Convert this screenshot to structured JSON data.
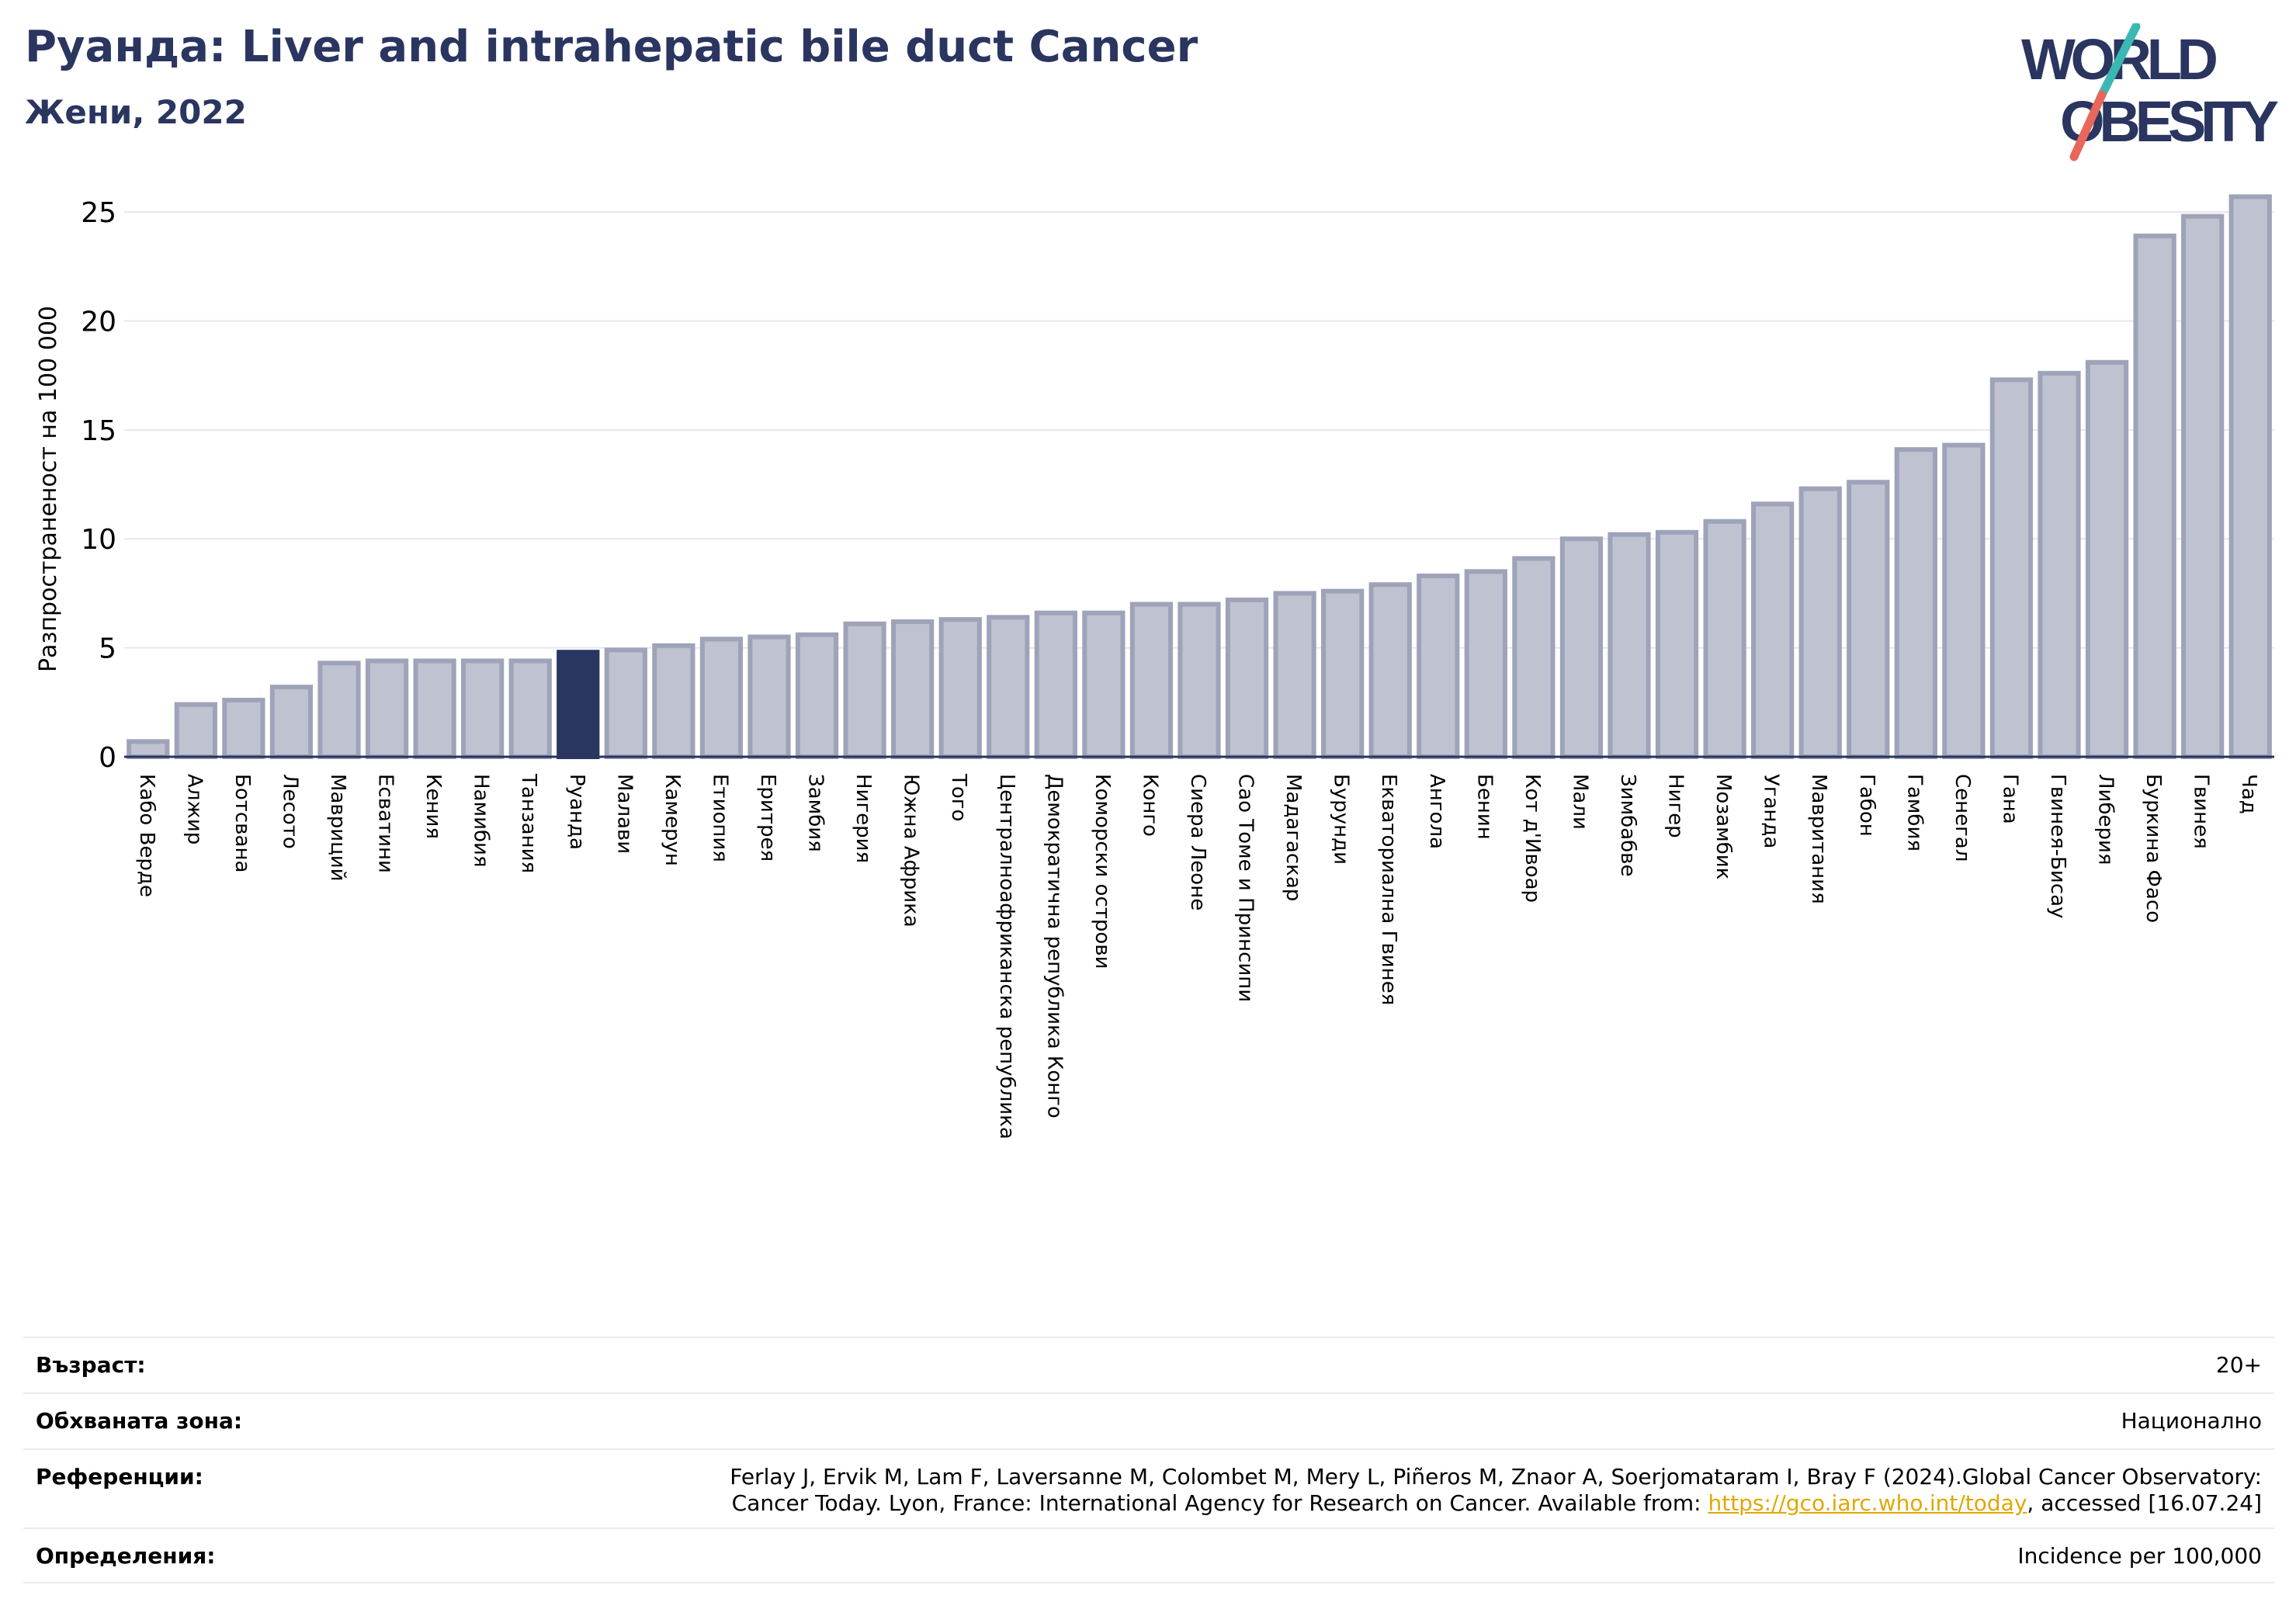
{
  "header": {
    "title": "Руанда: Liver and intrahepatic bile duct Cancer",
    "subtitle": "Жени, 2022"
  },
  "logo": {
    "line1": "WORLD",
    "line2": "OBESITY",
    "icon": "world-obesity-logo",
    "colors": {
      "text": "#2a3560",
      "slash_top": "#3bb8b3",
      "slash_bottom": "#e8675a"
    }
  },
  "chart_data": {
    "type": "bar",
    "ylabel": "Разпространеност  на 100 000",
    "ylim": [
      0,
      26
    ],
    "yticks": [
      0,
      5,
      10,
      15,
      20,
      25
    ],
    "grid": true,
    "highlight": "Руанда",
    "colors": {
      "bar": "#bfc2d0",
      "bar_edge": "#9ea3b9",
      "highlight": "#2a3560"
    },
    "categories": [
      "Кабо Верде",
      "Алжир",
      "Ботсвана",
      "Лесото",
      "Мавриций",
      "Есватини",
      "Кения",
      "Намибия",
      "Танзания",
      "Руанда",
      "Малави",
      "Камерун",
      "Етиопия",
      "Еритрея",
      "Замбия",
      "Нигерия",
      "Южна Африка",
      "Того",
      "Централноафриканска република",
      "Демократична република Конго",
      "Коморски острови",
      "Конго",
      "Сиера Леоне",
      "Сао Томе и Принсипи",
      "Мадагаскар",
      "Бурунди",
      "Екваториална Гвинея",
      "Ангола",
      "Бенин",
      "Кот д'Ивоар",
      "Мали",
      "Зимбабве",
      "Нигер",
      "Мозамбик",
      "Уганда",
      "Мавритания",
      "Габон",
      "Гамбия",
      "Сенегал",
      "Гана",
      "Гвинея-Бисау",
      "Либерия",
      "Буркина Фасо",
      "Гвинея",
      "Чад"
    ],
    "values": [
      0.7,
      2.4,
      2.6,
      3.2,
      4.3,
      4.4,
      4.4,
      4.4,
      4.4,
      4.8,
      4.9,
      5.1,
      5.4,
      5.5,
      5.6,
      6.1,
      6.2,
      6.3,
      6.4,
      6.6,
      6.6,
      7.0,
      7.0,
      7.2,
      7.5,
      7.6,
      7.9,
      8.3,
      8.5,
      9.1,
      10.0,
      10.2,
      10.3,
      10.8,
      11.6,
      12.3,
      12.6,
      14.1,
      14.3,
      17.3,
      17.6,
      18.1,
      23.9,
      24.8,
      25.7
    ]
  },
  "info": {
    "age_label": "Възраст:",
    "age_value": "20+",
    "area_label": "Обхваната зона:",
    "area_value": "Национално",
    "ref_label": "Референции:",
    "ref_line1": "Ferlay J, Ervik M, Lam F, Laversanne M, Colombet M, Mery L, Piñeros M, Znaor A, Soerjomataram I, Bray F (2024).Global Cancer Observatory:",
    "ref_line2_pre": "Cancer Today. Lyon, France: International Agency for Research on Cancer. Available from: ",
    "ref_link": "https://gco.iarc.who.int/today",
    "ref_line2_post": ", accessed [16.07.24]",
    "def_label": "Определения:",
    "def_value": "Incidence per 100,000"
  }
}
